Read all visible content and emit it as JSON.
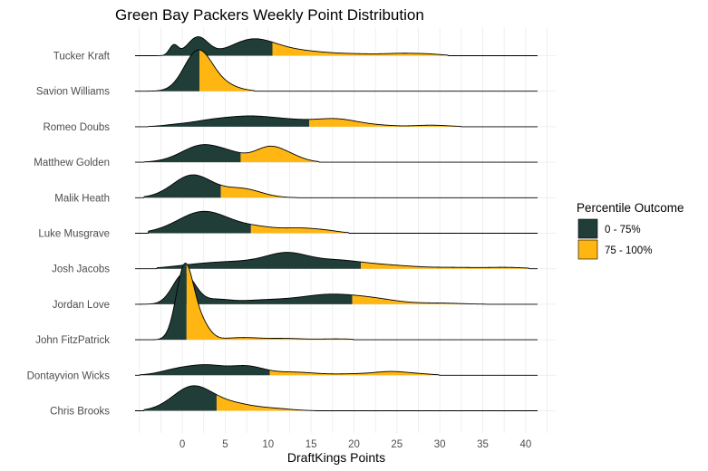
{
  "chart_data": {
    "type": "ridgeline",
    "title": "Green Bay Packers Weekly Point Distribution",
    "xlabel": "DraftKings Points",
    "ylabel": "",
    "xlim": [
      -5.5,
      43.5
    ],
    "x_ticks": [
      0,
      5,
      10,
      15,
      20,
      25,
      30,
      35,
      40
    ],
    "grid": true,
    "legend": {
      "title": "Percentile Outcome",
      "placement": "right",
      "entries": [
        {
          "label": "0 - 75%",
          "color": "#213d38"
        },
        {
          "label": "75 - 100%",
          "color": "#ffb612"
        }
      ]
    },
    "series": [
      {
        "name": "Tucker Kraft",
        "split": 10.5,
        "peaks": [
          [
            -1,
            0.5,
            2.3
          ],
          [
            1.8,
            1.2,
            4.2
          ],
          [
            8,
            2.5,
            3.2
          ],
          [
            11,
            3,
            1.0
          ],
          [
            15,
            3,
            0.6
          ],
          [
            21,
            3,
            0.35
          ],
          [
            26,
            2,
            0.45
          ],
          [
            29,
            1.5,
            0.25
          ]
        ],
        "range": [
          -5,
          31
        ]
      },
      {
        "name": "Savion Williams",
        "split": 2,
        "peaks": [
          [
            1.8,
            1.6,
            9.0
          ],
          [
            4.5,
            1.8,
            1.5
          ]
        ],
        "range": [
          -5,
          8.5
        ]
      },
      {
        "name": "Romeo Doubs",
        "split": 14.8,
        "peaks": [
          [
            -1,
            1.5,
            0.25
          ],
          [
            3,
            2.5,
            1.1
          ],
          [
            8,
            3,
            2.2
          ],
          [
            13,
            2.5,
            1.0
          ],
          [
            18,
            2.5,
            1.7
          ],
          [
            23,
            2,
            0.25
          ],
          [
            29,
            2,
            0.35
          ]
        ],
        "range": [
          -4,
          32.5
        ]
      },
      {
        "name": "Matthew Golden",
        "split": 6.8,
        "peaks": [
          [
            2.5,
            2.5,
            4.0
          ],
          [
            6,
            1.5,
            0.8
          ],
          [
            10.2,
            1.8,
            3.5
          ],
          [
            13,
            1.5,
            0.8
          ]
        ],
        "range": [
          -4.5,
          16
        ]
      },
      {
        "name": "Malik Heath",
        "split": 4.5,
        "peaks": [
          [
            1.2,
            2.3,
            5.2
          ],
          [
            7,
            2.2,
            2.0
          ]
        ],
        "range": [
          -4.5,
          13.5
        ]
      },
      {
        "name": "Luke Musgrave",
        "split": 8,
        "peaks": [
          [
            2.5,
            3,
            5.0
          ],
          [
            9,
            2.5,
            1.2
          ],
          [
            14,
            2,
            1.0
          ],
          [
            17,
            1.5,
            0.4
          ]
        ],
        "range": [
          -4,
          19.5
        ]
      },
      {
        "name": "Josh Jacobs",
        "split": 20.8,
        "peaks": [
          [
            2,
            3,
            0.9
          ],
          [
            7,
            3,
            1.3
          ],
          [
            12.2,
            2.5,
            3.2
          ],
          [
            18,
            3,
            1.8
          ],
          [
            24,
            3,
            0.7
          ],
          [
            32,
            3.5,
            0.3
          ],
          [
            38,
            2,
            0.25
          ]
        ],
        "range": [
          -3,
          40.5
        ]
      },
      {
        "name": "Jordan Love",
        "split": 19.8,
        "peaks": [
          [
            0.2,
            1.3,
            7.0
          ],
          [
            4,
            1.5,
            0.8
          ],
          [
            10,
            4,
            1.0
          ],
          [
            17,
            3,
            1.8
          ],
          [
            22,
            3,
            1.2
          ],
          [
            30,
            2.5,
            0.25
          ]
        ],
        "range": [
          -5,
          35.5
        ]
      },
      {
        "name": "John FitzPatrick",
        "split": 0.5,
        "peaks": [
          [
            0.3,
            1.0,
            17.0
          ],
          [
            2.2,
            1.0,
            3.5
          ],
          [
            7,
            2,
            0.5
          ],
          [
            12,
            2,
            0.3
          ],
          [
            18,
            2,
            0.2
          ]
        ],
        "range": [
          -5.5,
          20
        ]
      },
      {
        "name": "Dontayvion Wicks",
        "split": 10.2,
        "peaks": [
          [
            -0.5,
            2,
            1.3
          ],
          [
            3,
            2,
            2.0
          ],
          [
            7.5,
            2,
            2.0
          ],
          [
            13,
            2.5,
            0.7
          ],
          [
            20,
            2.5,
            0.3
          ],
          [
            24.5,
            2,
            0.8
          ],
          [
            28,
            1.5,
            0.2
          ]
        ],
        "range": [
          -5,
          30
        ]
      },
      {
        "name": "Chris Brooks",
        "split": 4,
        "peaks": [
          [
            1.2,
            2.3,
            5.5
          ],
          [
            6,
            2.5,
            1.5
          ],
          [
            11,
            2,
            0.4
          ]
        ],
        "range": [
          -4.5,
          15.5
        ]
      }
    ]
  }
}
